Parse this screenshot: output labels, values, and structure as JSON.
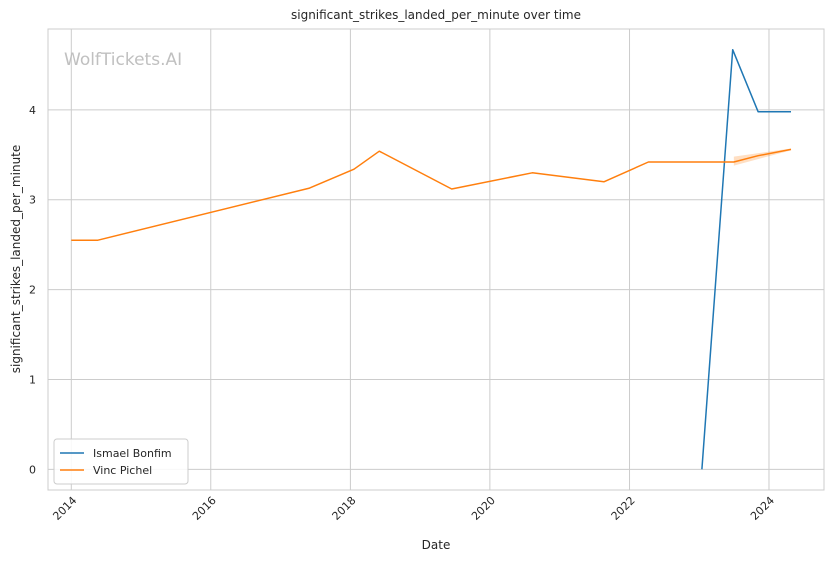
{
  "watermark": "WolfTickets.AI",
  "chart_data": {
    "type": "line",
    "title": "significant_strikes_landed_per_minute over time",
    "xlabel": "Date",
    "ylabel": "significant_strikes_landed_per_minute",
    "x_ticks": [
      "2014",
      "2016",
      "2018",
      "2020",
      "2022",
      "2024"
    ],
    "y_ticks": [
      "0",
      "1",
      "2",
      "3",
      "4"
    ],
    "xlim": [
      "2013-09-01",
      "2024-10-15"
    ],
    "ylim": [
      -0.23,
      4.9
    ],
    "grid": true,
    "legend_position": "lower-left",
    "series": [
      {
        "name": "Ismael Bonfim",
        "color": "#1f77b4",
        "points": [
          {
            "x": "2023-01-15",
            "y": 0.0
          },
          {
            "x": "2023-06-25",
            "y": 4.67
          },
          {
            "x": "2023-11-05",
            "y": 3.98
          },
          {
            "x": "2024-04-25",
            "y": 3.98
          }
        ]
      },
      {
        "name": "Vinc Pichel",
        "color": "#ff7f0e",
        "points": [
          {
            "x": "2014-01-01",
            "y": 2.55
          },
          {
            "x": "2014-05-20",
            "y": 2.55
          },
          {
            "x": "2017-06-01",
            "y": 3.13
          },
          {
            "x": "2018-01-20",
            "y": 3.34
          },
          {
            "x": "2018-06-01",
            "y": 3.54
          },
          {
            "x": "2019-06-15",
            "y": 3.12
          },
          {
            "x": "2020-08-10",
            "y": 3.3
          },
          {
            "x": "2021-08-20",
            "y": 3.2
          },
          {
            "x": "2022-04-10",
            "y": 3.42
          },
          {
            "x": "2023-07-01",
            "y": 3.42
          },
          {
            "x": "2023-11-05",
            "y": 3.49
          },
          {
            "x": "2024-04-25",
            "y": 3.56
          }
        ]
      }
    ]
  }
}
